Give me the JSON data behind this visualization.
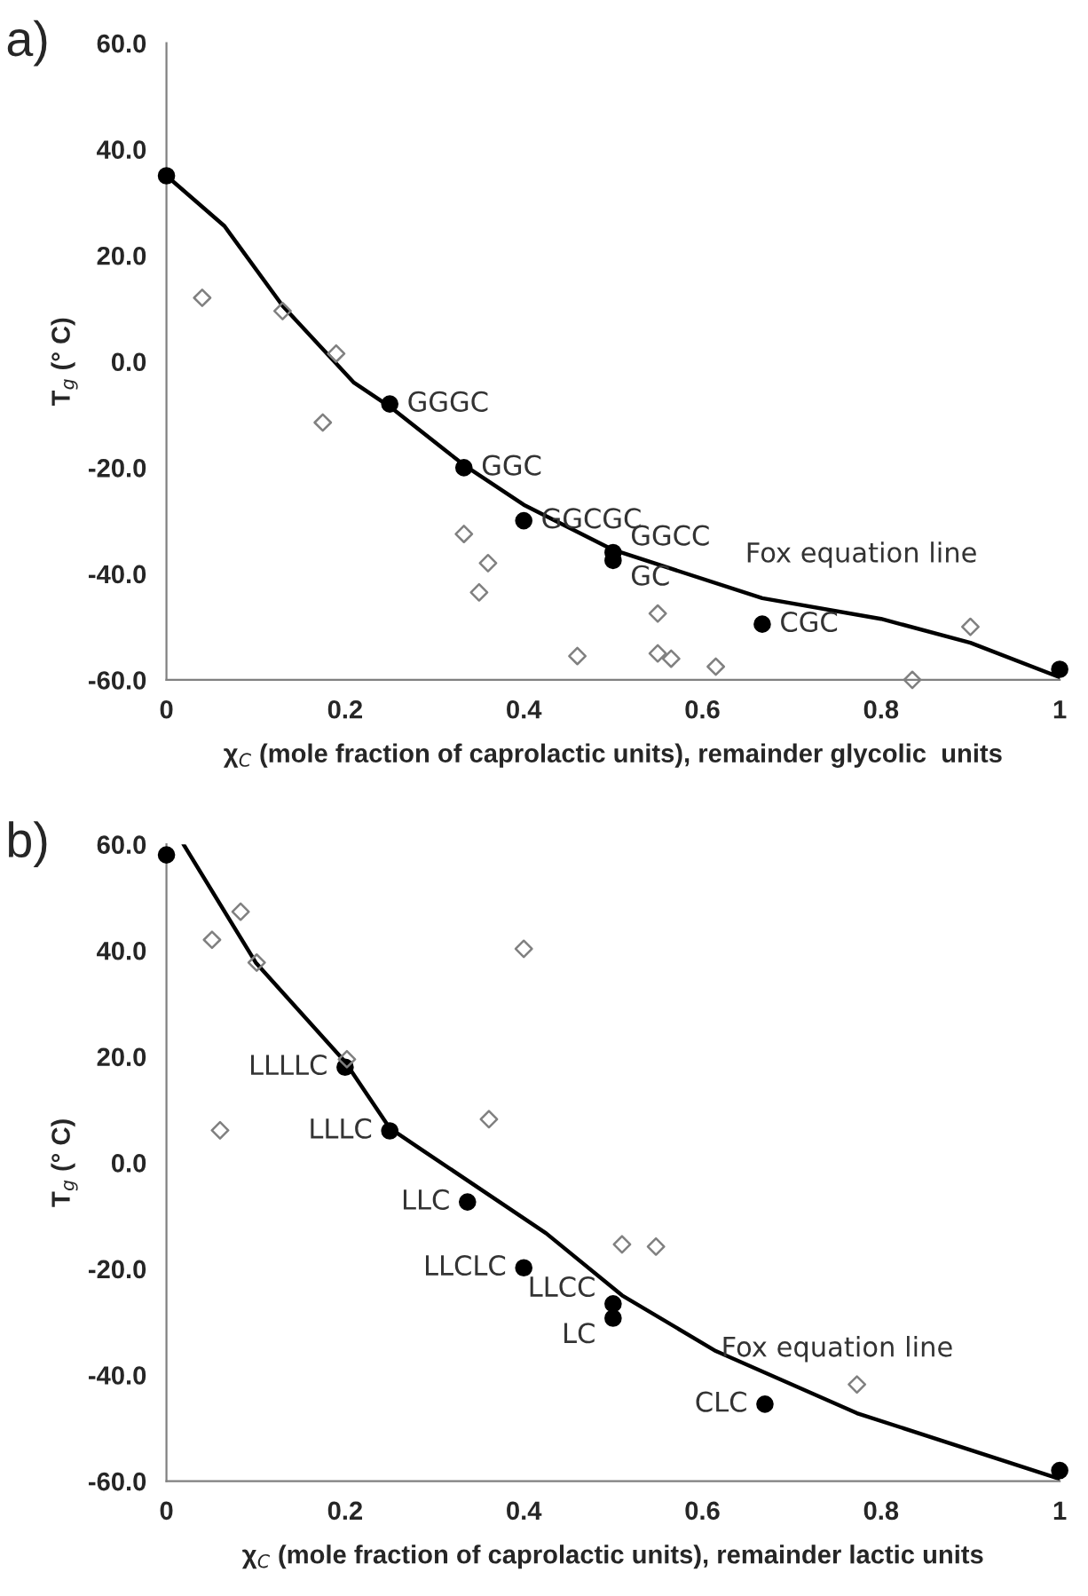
{
  "chart_data": [
    {
      "type": "scatter",
      "title": "a)",
      "xlabel": "χ$_{C}$ (mole fraction of caprolactic units), remainder glycolic  units",
      "ylabel": "T$_{g}$ (° C)",
      "xlim": [
        0,
        1
      ],
      "xticks": [
        0,
        0.2,
        0.4,
        0.6,
        0.8,
        1
      ],
      "ylim": [
        -60,
        60
      ],
      "yticks": [
        {
          "value": -60,
          "label": "-60.0"
        },
        {
          "value": -40,
          "label": "-40.0"
        },
        {
          "value": -20,
          "label": "-20.0"
        },
        {
          "value": 0,
          "label": "0.0"
        },
        {
          "value": 20,
          "label": "20.0"
        },
        {
          "value": 40,
          "label": "40.0"
        },
        {
          "value": 60,
          "label": "60.0"
        }
      ],
      "grid": false,
      "legend": false,
      "series": [
        {
          "type": "line",
          "color": "#000000",
          "marker": "none",
          "line_style": "solid",
          "x": [
            0,
            0.065,
            0.13,
            0.21,
            0.25,
            0.333,
            0.4,
            0.5,
            0.667,
            0.8,
            0.9,
            1
          ],
          "values": [
            35,
            25.5,
            10.5,
            -4,
            -8.5,
            -19.5,
            -27,
            -35.5,
            -44.6,
            -48.5,
            -53,
            -59.5
          ]
        },
        {
          "color": "#000000",
          "marker": "circle",
          "x": [
            0,
            0.25,
            0.333,
            0.4,
            0.5,
            0.5,
            0.667,
            1
          ],
          "values": [
            35,
            -8,
            -20,
            -30,
            -36,
            -37.5,
            -49.5,
            -58
          ]
        },
        {
          "color": "#808080",
          "marker": "diamond",
          "x": [
            0.04,
            0.13,
            0.19,
            0.175,
            0.333,
            0.36,
            0.35,
            0.46,
            0.55,
            0.55,
            0.565,
            0.615,
            0.835,
            0.9
          ],
          "values": [
            12,
            9.5,
            1.5,
            -11.5,
            -32.5,
            -38,
            -43.5,
            -55.5,
            -47.5,
            -55,
            -56,
            -57.5,
            -60,
            -50
          ]
        }
      ],
      "annotations": [
        {
          "text": "GGGC",
          "x": 0.25,
          "y": -8
        },
        {
          "text": "GGC",
          "x": 0.333,
          "y": -20
        },
        {
          "text": "GGCGC",
          "x": 0.4,
          "y": -30
        },
        {
          "text": "GGCC",
          "x": 0.5,
          "y": -36
        },
        {
          "text": "GC",
          "x": 0.5,
          "y": -37.5
        },
        {
          "text": "CGC",
          "x": 0.667,
          "y": -49.5
        },
        {
          "text": "Fox equation line",
          "x": 0.8,
          "y": -48.5
        }
      ]
    },
    {
      "type": "scatter",
      "title": "b)",
      "xlabel": "χ$_{C}$ (mole fraction of caprolactic units), remainder lactic units",
      "ylabel": "T$_{g}$ (° C)",
      "xlim": [
        0,
        1
      ],
      "xticks": [
        0,
        0.2,
        0.4,
        0.6,
        0.8,
        1
      ],
      "ylim": [
        -60,
        60
      ],
      "yticks": [
        {
          "value": -60,
          "label": "-60.0"
        },
        {
          "value": -40,
          "label": "-40.0"
        },
        {
          "value": -20,
          "label": "-20.0"
        },
        {
          "value": 0,
          "label": "0.0"
        },
        {
          "value": 20,
          "label": "20.0"
        },
        {
          "value": 40,
          "label": "40.0"
        },
        {
          "value": 60,
          "label": "60.0"
        }
      ],
      "grid": false,
      "legend": false,
      "series": [
        {
          "type": "line",
          "color": "#000000",
          "marker": "none",
          "line_style": "solid",
          "x": [
            0.019,
            0.1,
            0.2,
            0.25,
            0.287,
            0.425,
            0.51,
            0.615,
            0.773,
            1
          ],
          "values": [
            60,
            37.7,
            19,
            6.5,
            2.3,
            -13.3,
            -25,
            -35.5,
            -47.2,
            -59.6
          ]
        },
        {
          "color": "#000000",
          "marker": "circle",
          "x": [
            0,
            0.2,
            0.25,
            0.337,
            0.4,
            0.5,
            0.5,
            0.67,
            1
          ],
          "values": [
            58,
            18,
            6,
            -7.4,
            -19.8,
            -26.6,
            -29.3,
            -45.5,
            -58
          ]
        },
        {
          "color": "#808080",
          "marker": "diamond",
          "x": [
            0.051,
            0.083,
            0.101,
            0.202,
            0.06,
            0.4,
            0.361,
            0.51,
            0.548,
            0.773
          ],
          "values": [
            42,
            47.3,
            37.7,
            19.5,
            6.1,
            40.3,
            8.2,
            -15.4,
            -15.8,
            -41.8
          ]
        }
      ],
      "annotations": [
        {
          "text": "LLLLC",
          "x": 0.2,
          "y": 18
        },
        {
          "text": "LLLC",
          "x": 0.25,
          "y": 6
        },
        {
          "text": "LLC",
          "x": 0.337,
          "y": -7.4
        },
        {
          "text": "LLCLC",
          "x": 0.4,
          "y": -19.8
        },
        {
          "text": "LLCC",
          "x": 0.5,
          "y": -26.6
        },
        {
          "text": "LC",
          "x": 0.5,
          "y": -29.3
        },
        {
          "text": "CLC",
          "x": 0.67,
          "y": -45.5
        },
        {
          "text": "Fox equation line",
          "x": 0.773,
          "y": -47.2
        }
      ]
    }
  ]
}
